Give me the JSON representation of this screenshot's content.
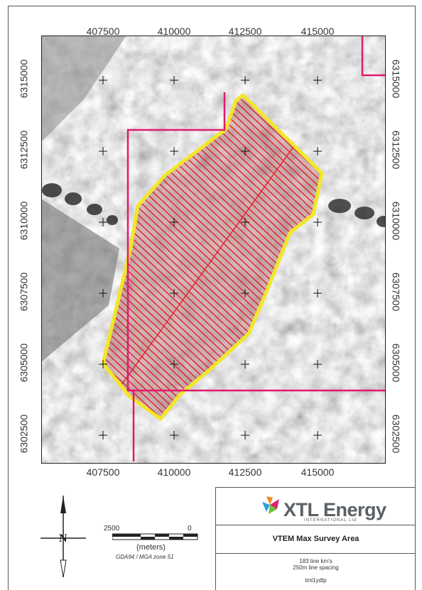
{
  "map": {
    "x_ticks": [
      "407500",
      "410000",
      "412500",
      "415000"
    ],
    "y_ticks": [
      "6315000",
      "6312500",
      "6310000",
      "6307500",
      "6305000",
      "6302500"
    ],
    "colors": {
      "boundary": "#e01a6e",
      "survey_outline": "#f2e62a",
      "flight_lines": "#e0202a",
      "imagery": "grayscale"
    }
  },
  "scale_bar": {
    "left_value": "2500",
    "right_value": "0",
    "units": "(meters)",
    "datum": "GDA94 / MGA zone 51"
  },
  "north_arrow": {
    "icon": "north-arrow-icon",
    "letter": "N"
  },
  "title_block": {
    "company": "XTL Energy",
    "company_sub": "INTERNATIONAL Ltd",
    "map_title": "VTEM Max Survey Area",
    "line_km": "183 line km's",
    "line_spacing": "250m line spacing",
    "reference": "tml1ydtp"
  }
}
